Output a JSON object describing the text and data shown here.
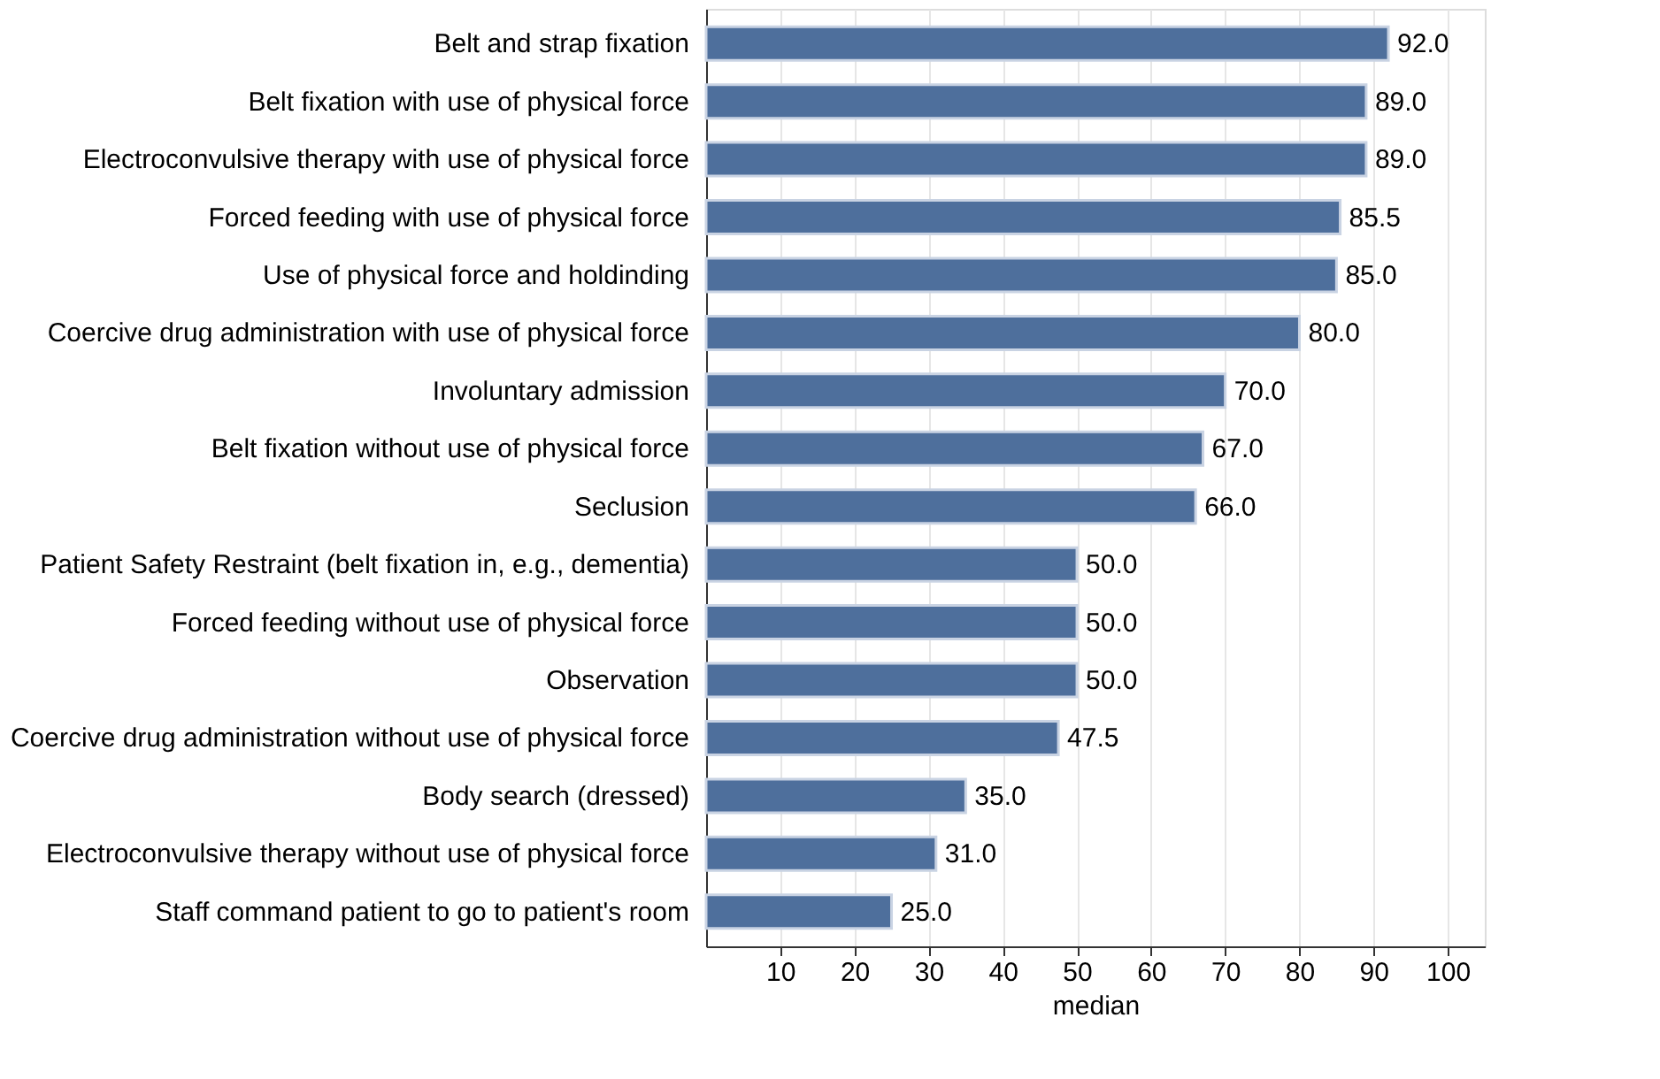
{
  "chart_data": {
    "type": "bar",
    "orientation": "horizontal",
    "xlabel": "median",
    "categories": [
      "Belt and strap fixation",
      "Belt fixation with use of physical force",
      "Electroconvulsive therapy with use of physical force",
      "Forced feeding with use of physical force",
      "Use of physical force and holdinding",
      "Coercive drug administration with use of physical force",
      "Involuntary admission",
      "Belt fixation without use of physical force",
      "Seclusion",
      "Patient Safety Restraint (belt fixation in, e.g., dementia)",
      "Forced feeding without use of physical force",
      "Observation",
      "Coercive drug administration without use of physical force",
      "Body search (dressed)",
      "Electroconvulsive therapy without use of physical force",
      "Staff command patient to go to patient's room"
    ],
    "values": [
      92.0,
      89.0,
      89.0,
      85.5,
      85.0,
      80.0,
      70.0,
      67.0,
      66.0,
      50.0,
      50.0,
      50.0,
      47.5,
      35.0,
      31.0,
      25.0
    ],
    "value_labels": [
      "92.0",
      "89.0",
      "89.0",
      "85.5",
      "85.0",
      "80.0",
      "70.0",
      "67.0",
      "66.0",
      "50.0",
      "50.0",
      "50.0",
      "47.5",
      "35.0",
      "31.0",
      "25.0"
    ],
    "color": "#4e6f9c",
    "xlim": [
      0,
      105
    ],
    "xticks": [
      10,
      20,
      30,
      40,
      50,
      60,
      70,
      80,
      90,
      100
    ],
    "grid": "x"
  }
}
